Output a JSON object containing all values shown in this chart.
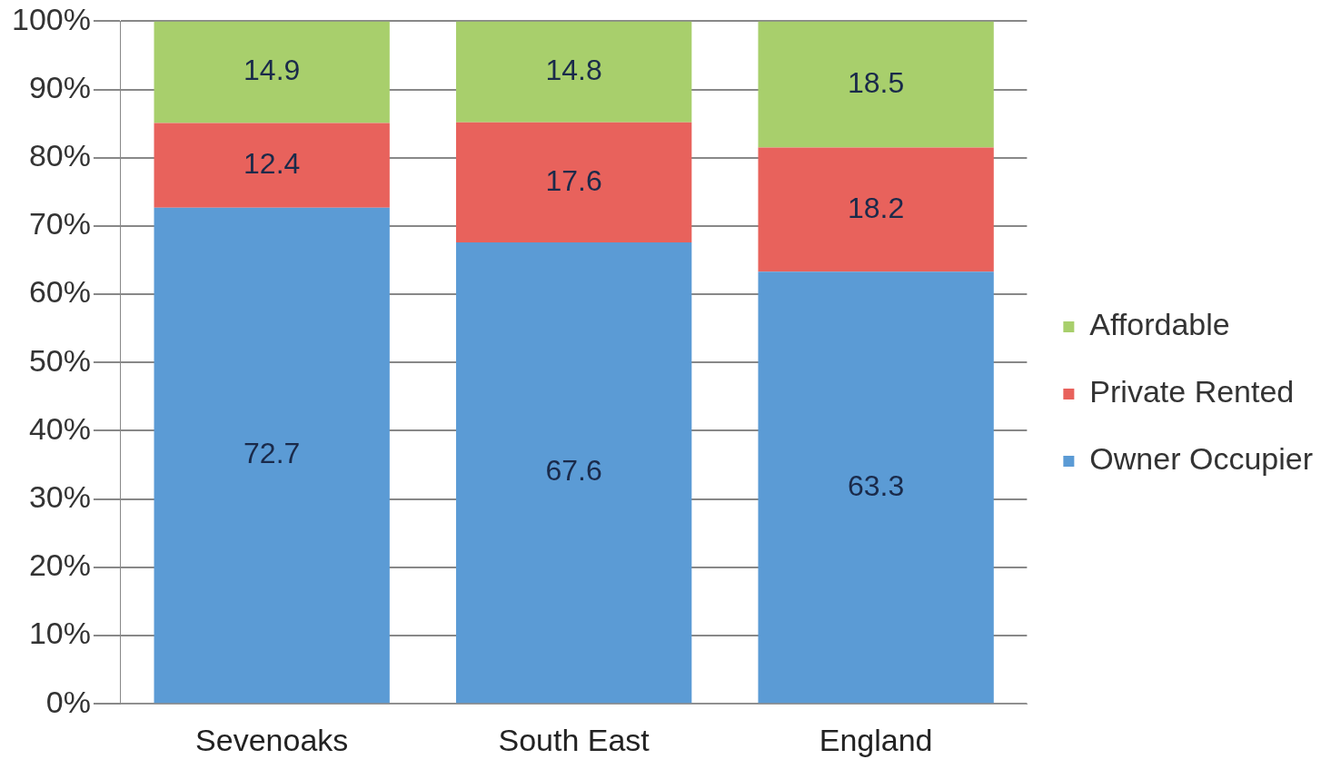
{
  "chart_data": {
    "type": "bar",
    "stacked": true,
    "categories": [
      "Sevenoaks",
      "South East",
      "England"
    ],
    "series": [
      {
        "name": "Owner Occupier",
        "color": "#5b9bd5",
        "values": [
          72.7,
          67.6,
          63.3
        ]
      },
      {
        "name": "Private Rented",
        "color": "#e8625c",
        "values": [
          12.4,
          17.6,
          18.2
        ]
      },
      {
        "name": "Affordable",
        "color": "#a8cf6c",
        "values": [
          14.9,
          14.8,
          18.5
        ]
      }
    ],
    "ylim": [
      0,
      100
    ],
    "yticks": [
      {
        "value": 0,
        "label": "0%"
      },
      {
        "value": 10,
        "label": "10%"
      },
      {
        "value": 20,
        "label": "20%"
      },
      {
        "value": 30,
        "label": "30%"
      },
      {
        "value": 40,
        "label": "40%"
      },
      {
        "value": 50,
        "label": "50%"
      },
      {
        "value": 60,
        "label": "60%"
      },
      {
        "value": 70,
        "label": "70%"
      },
      {
        "value": 80,
        "label": "80%"
      },
      {
        "value": 90,
        "label": "90%"
      },
      {
        "value": 100,
        "label": "100%"
      }
    ],
    "grid": "y",
    "legend": "right",
    "data_labels": true
  }
}
